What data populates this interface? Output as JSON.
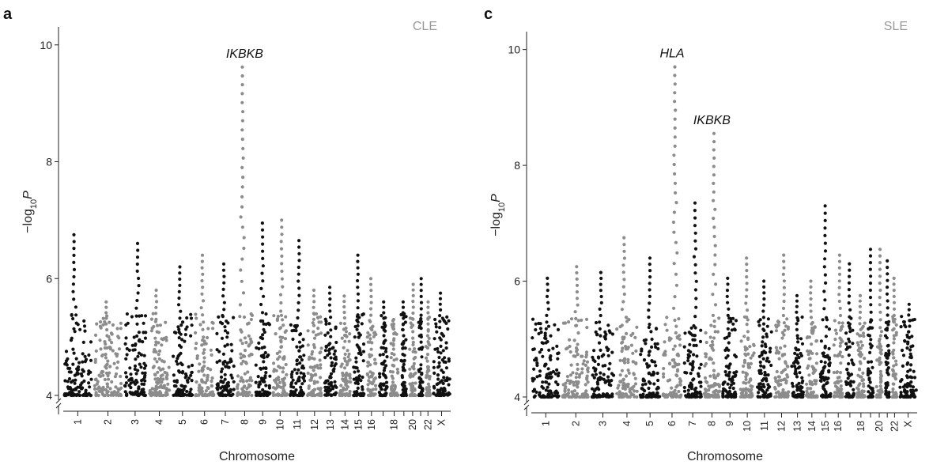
{
  "figure": {
    "description": "Manhattan plots of genome-wide association results",
    "colors": {
      "odd_chromosome": "#111111",
      "even_chromosome": "#8c8c8c",
      "panel_label": "#999999"
    }
  },
  "chart_data": [
    {
      "type": "scatter",
      "panel": "a",
      "label": "CLE",
      "xlabel": "Chromosome",
      "ylabel_main": "−log",
      "ylabel_sub": "10",
      "ylabel_tail": "P",
      "ylim": [
        4,
        10.2
      ],
      "yticks": [
        4,
        6,
        8,
        10
      ],
      "chromosomes": [
        "1",
        "2",
        "3",
        "4",
        "5",
        "6",
        "7",
        "8",
        "9",
        "10",
        "11",
        "12",
        "13",
        "14",
        "15",
        "16",
        "17",
        "18",
        "19",
        "20",
        "21",
        "22",
        "X"
      ],
      "chromosome_tick_labels": [
        "1",
        "2",
        "3",
        "4",
        "5",
        "6",
        "7",
        "8",
        "9",
        "10",
        "11",
        "12",
        "13",
        "14",
        "15",
        "16",
        "18",
        "20",
        "22",
        "X"
      ],
      "chromosome_max_neglog10p": [
        6.75,
        5.6,
        6.6,
        5.8,
        6.2,
        6.4,
        6.25,
        9.62,
        6.95,
        7.0,
        6.65,
        5.8,
        5.85,
        5.7,
        6.4,
        6.0,
        5.6,
        5.3,
        5.6,
        5.9,
        6.0,
        5.6,
        5.75
      ],
      "annotations": [
        {
          "text": "IKBKB",
          "chromosome": "8",
          "value": 9.62
        }
      ]
    },
    {
      "type": "scatter",
      "panel": "c",
      "label": "SLE",
      "xlabel": "Chromosome",
      "ylabel_main": "−log",
      "ylabel_sub": "10",
      "ylabel_tail": "P",
      "ylim": [
        4,
        10.2
      ],
      "yticks": [
        4,
        6,
        8,
        10
      ],
      "chromosomes": [
        "1",
        "2",
        "3",
        "4",
        "5",
        "6",
        "7",
        "8",
        "9",
        "10",
        "11",
        "12",
        "13",
        "14",
        "15",
        "16",
        "17",
        "18",
        "19",
        "20",
        "21",
        "22",
        "X"
      ],
      "chromosome_tick_labels": [
        "1",
        "2",
        "3",
        "4",
        "5",
        "6",
        "7",
        "8",
        "9",
        "10",
        "11",
        "12",
        "13",
        "14",
        "15",
        "16",
        "18",
        "20",
        "22",
        "X"
      ],
      "chromosome_max_neglog10p": [
        6.05,
        6.25,
        6.15,
        6.75,
        6.4,
        9.7,
        7.35,
        8.55,
        6.05,
        6.4,
        6.0,
        6.45,
        5.75,
        6.0,
        7.3,
        6.45,
        6.3,
        5.75,
        6.55,
        6.55,
        6.35,
        6.05,
        5.6
      ],
      "annotations": [
        {
          "text": "HLA",
          "chromosome": "6",
          "value": 9.7
        },
        {
          "text": "IKBKB",
          "chromosome": "8",
          "value": 8.55
        }
      ]
    }
  ]
}
